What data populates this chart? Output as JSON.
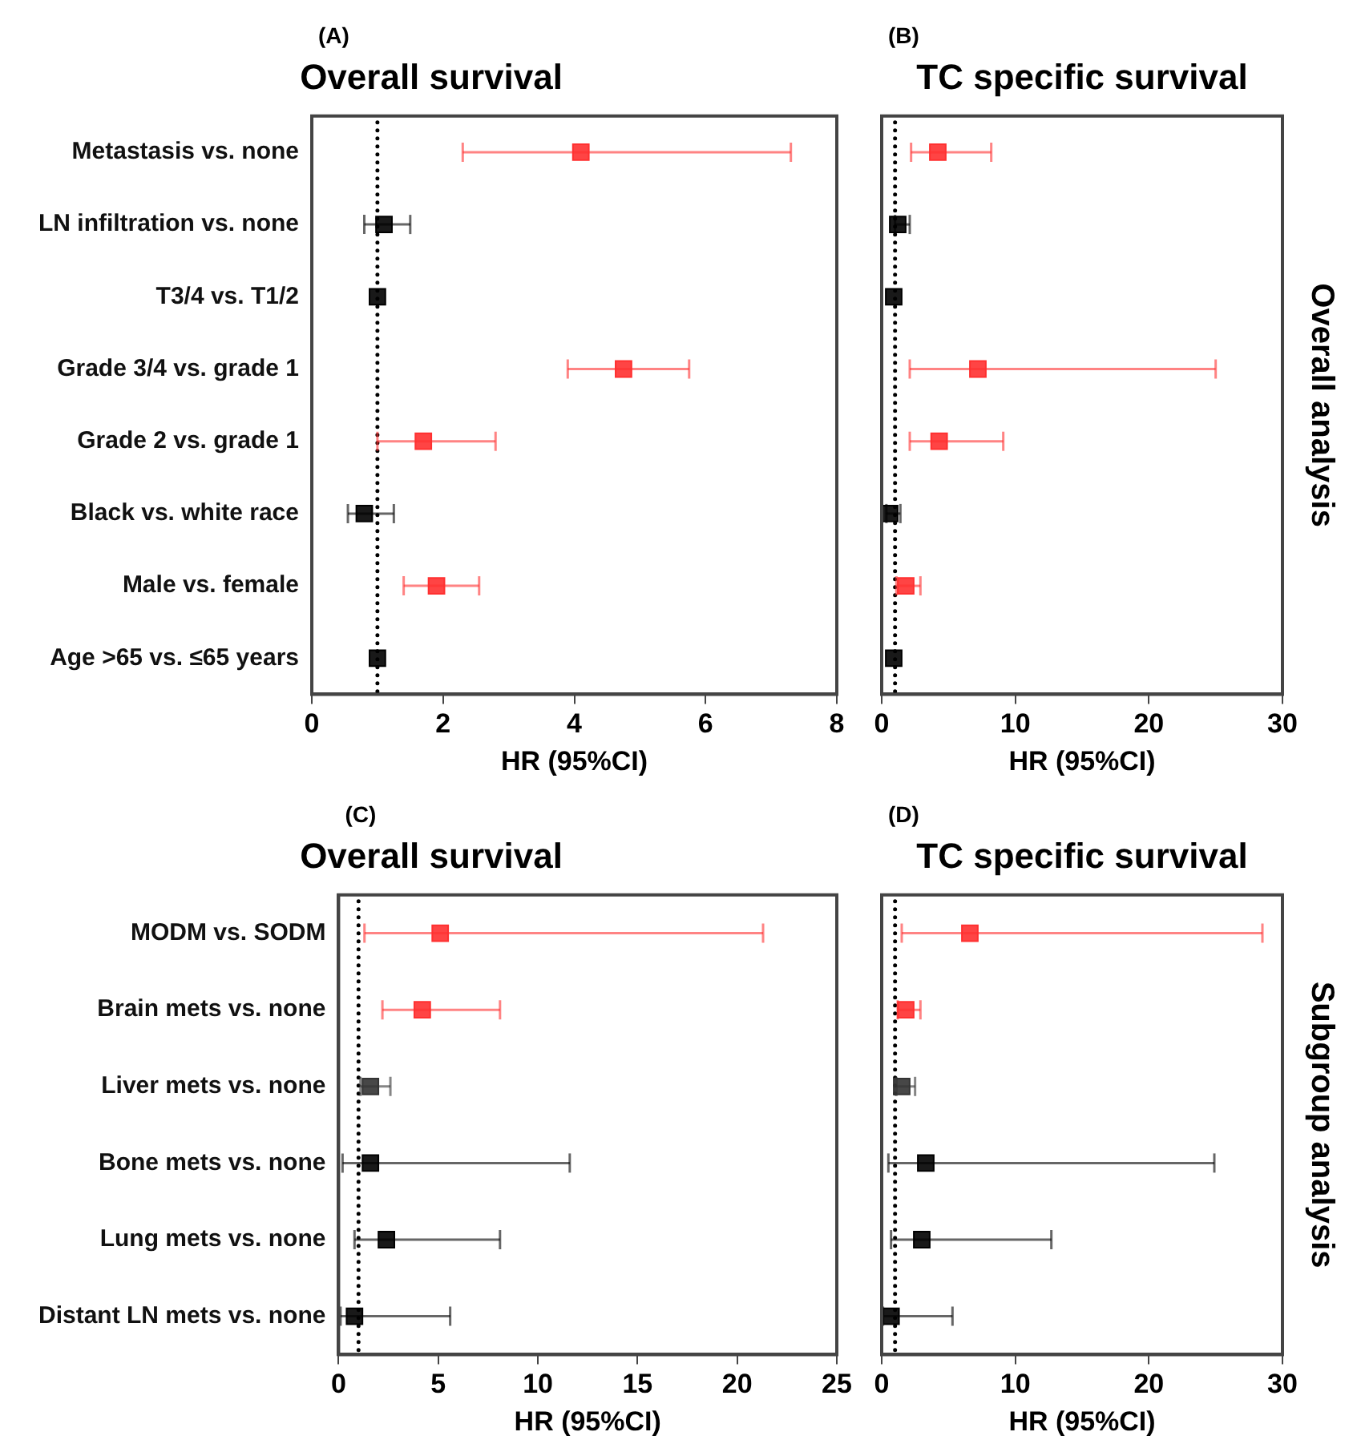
{
  "chart_data": [
    {
      "type": "scatter",
      "orientation": "horizontal",
      "title": "Overall survival",
      "xlabel": "HR (95%CI)",
      "marker": "square",
      "categories": [
        "Metastasis vs. none",
        "LN infiltration vs. none",
        "T3/4 vs. T1/2",
        "Grade 3/4 vs. grade 1",
        "Grade 2 vs. grade 1",
        "Black vs. white race",
        "Male vs. female",
        "Age >65 vs. ≤65 years"
      ],
      "values": [
        4.1,
        1.1,
        1.0,
        4.75,
        1.7,
        0.8,
        1.9,
        1.0
      ],
      "errors": [
        [
          2.3,
          7.3
        ],
        [
          0.8,
          1.5
        ],
        null,
        [
          3.9,
          5.75
        ],
        [
          1.0,
          2.8
        ],
        [
          0.55,
          1.25
        ],
        [
          1.4,
          2.55
        ],
        null
      ],
      "colors": [
        "#ff3030",
        "#000000",
        "#000000",
        "#ff3030",
        "#ff3030",
        "#000000",
        "#ff3030",
        "#000000"
      ],
      "xlim": [
        0,
        8
      ],
      "xticks": [
        0,
        2,
        4,
        6,
        8
      ],
      "ref_lines": [
        {
          "axis": "x",
          "value": 1,
          "line_style": "dotted",
          "color": "#000000"
        }
      ],
      "annotations": [
        "(A)"
      ]
    },
    {
      "type": "scatter",
      "orientation": "horizontal",
      "title": "TC specific survival",
      "xlabel": "HR (95%CI)",
      "marker": "square",
      "tick_labels": "x",
      "categories": [
        null,
        null,
        null,
        null,
        null,
        null,
        null,
        null
      ],
      "values": [
        4.2,
        1.2,
        0.9,
        7.2,
        4.3,
        0.6,
        1.8,
        0.9
      ],
      "errors": [
        [
          2.2,
          8.2
        ],
        [
          1.0,
          2.1
        ],
        null,
        [
          2.1,
          25
        ],
        [
          2.1,
          9.1
        ],
        [
          0.35,
          1.4
        ],
        [
          1.1,
          2.9
        ],
        null
      ],
      "colors": [
        "#ff3030",
        "#000000",
        "#000000",
        "#ff3030",
        "#ff3030",
        "#000000",
        "#ff3030",
        "#000000"
      ],
      "xlim": [
        0,
        30
      ],
      "xticks": [
        0,
        10,
        20,
        30
      ],
      "ref_lines": [
        {
          "axis": "x",
          "value": 1,
          "line_style": "dotted",
          "color": "#000000"
        }
      ],
      "annotations": [
        "(B)",
        "Overall analysis"
      ]
    },
    {
      "type": "scatter",
      "orientation": "horizontal",
      "title": "Overall survival",
      "xlabel": "HR (95%CI)",
      "marker": "square",
      "categories": [
        "MODM vs. SODM",
        "Brain mets vs. none",
        "Liver mets vs. none",
        "Bone mets vs. none",
        "Lung mets vs. none",
        "Distant LN mets vs. none"
      ],
      "values": [
        5.1,
        4.2,
        1.6,
        1.6,
        2.4,
        0.8
      ],
      "errors": [
        [
          1.3,
          21.3
        ],
        [
          2.2,
          8.1
        ],
        [
          1.1,
          2.6
        ],
        [
          0.2,
          11.6
        ],
        [
          0.8,
          8.1
        ],
        [
          0.1,
          5.6
        ]
      ],
      "colors": [
        "#ff3030",
        "#ff3030",
        "#333333",
        "#000000",
        "#000000",
        "#000000"
      ],
      "xlim": [
        0,
        25
      ],
      "xticks": [
        0,
        5,
        10,
        15,
        20,
        25
      ],
      "ref_lines": [
        {
          "axis": "x",
          "value": 1,
          "line_style": "dotted",
          "color": "#000000"
        }
      ],
      "annotations": [
        "(C)"
      ]
    },
    {
      "type": "scatter",
      "orientation": "horizontal",
      "title": "TC specific survival",
      "xlabel": "HR (95%CI)",
      "marker": "square",
      "tick_labels": "x",
      "categories": [
        null,
        null,
        null,
        null,
        null,
        null
      ],
      "values": [
        6.6,
        1.8,
        1.5,
        3.3,
        3.0,
        0.7
      ],
      "errors": [
        [
          1.5,
          28.5
        ],
        [
          1.2,
          2.9
        ],
        [
          1.1,
          2.5
        ],
        [
          0.5,
          24.9
        ],
        [
          0.7,
          12.7
        ],
        [
          0.1,
          5.3
        ]
      ],
      "colors": [
        "#ff3030",
        "#ff3030",
        "#333333",
        "#000000",
        "#000000",
        "#000000"
      ],
      "xlim": [
        0,
        30
      ],
      "xticks": [
        0,
        10,
        20,
        30
      ],
      "ref_lines": [
        {
          "axis": "x",
          "value": 1,
          "line_style": "dotted",
          "color": "#000000"
        }
      ],
      "annotations": [
        "(D)",
        "Subgroup analysis"
      ]
    }
  ]
}
